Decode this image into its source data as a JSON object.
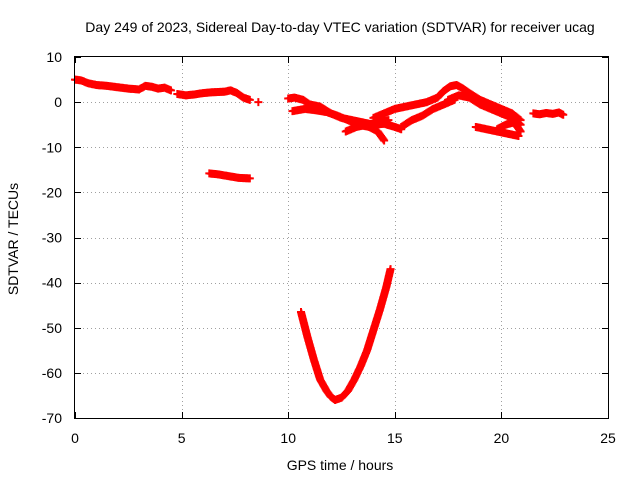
{
  "chart_data": {
    "type": "scatter",
    "title": "Day 249 of 2023, Sidereal Day-to-day VTEC variation (SDTVAR) for receiver ucag",
    "xlabel": "GPS time / hours",
    "ylabel": "SDTVAR / TECUs",
    "xlim": [
      0,
      25
    ],
    "ylim": [
      -70,
      10
    ],
    "xticks": [
      0,
      5,
      10,
      15,
      20,
      25
    ],
    "yticks": [
      10,
      0,
      -10,
      -20,
      -30,
      -40,
      -50,
      -60,
      -70
    ],
    "grid": true,
    "marker": "plus",
    "color": "#ff0000",
    "series": [
      {
        "name": "SDTVAR",
        "segments": [
          {
            "x": [
              0.0,
              0.3,
              0.6,
              1.0,
              1.5,
              2.0,
              2.5,
              3.0,
              3.3,
              3.6,
              3.9,
              4.2,
              4.5
            ],
            "y": [
              5,
              4.8,
              4.2,
              3.8,
              3.6,
              3.3,
              3.0,
              2.8,
              3.6,
              3.4,
              3.0,
              3.2,
              2.6
            ]
          },
          {
            "x": [
              4.8,
              5.2,
              5.6,
              6.0,
              6.5,
              7.0,
              7.3,
              7.6,
              7.9,
              8.2
            ],
            "y": [
              1.8,
              1.5,
              1.7,
              2.0,
              2.2,
              2.3,
              2.6,
              2.0,
              1.0,
              0.5
            ]
          },
          {
            "x": [
              8.6
            ],
            "y": [
              0.0
            ]
          },
          {
            "x": [
              6.3,
              6.7,
              7.2,
              7.7,
              8.2
            ],
            "y": [
              -15.8,
              -16.0,
              -16.4,
              -16.8,
              -16.9
            ]
          },
          {
            "x": [
              10.0,
              10.3,
              10.7,
              11.0,
              11.5,
              12.0,
              12.5,
              13.0,
              13.5,
              14.0,
              14.5,
              15.0,
              15.3
            ],
            "y": [
              0.8,
              1.0,
              0.5,
              -0.5,
              -1.0,
              -2.5,
              -3.5,
              -4.0,
              -4.5,
              -5.0,
              -4.8,
              -5.5,
              -6.0
            ]
          },
          {
            "x": [
              10.2,
              10.8,
              11.3,
              11.8,
              12.3,
              12.8,
              13.3,
              13.8,
              14.2,
              14.5
            ],
            "y": [
              -2.0,
              -1.5,
              -1.8,
              -2.2,
              -3.0,
              -4.0,
              -5.0,
              -5.5,
              -6.5,
              -8.5
            ]
          },
          {
            "x": [
              12.7,
              13.2,
              13.7,
              14.2,
              14.7
            ],
            "y": [
              -6.5,
              -5.5,
              -5.0,
              -4.5,
              -4.0
            ]
          },
          {
            "x": [
              14.0,
              14.5,
              15.0,
              15.5,
              16.0,
              16.5,
              17.0,
              17.3,
              17.6,
              17.9,
              18.2,
              18.5,
              19.0,
              19.5,
              20.0,
              20.5,
              20.9
            ],
            "y": [
              -3.5,
              -2.5,
              -1.5,
              -1.0,
              -0.5,
              0.0,
              1.0,
              2.5,
              3.5,
              3.8,
              3.0,
              2.0,
              0.5,
              -0.5,
              -1.5,
              -2.5,
              -4.0
            ]
          },
          {
            "x": [
              15.3,
              15.8,
              16.3,
              16.8,
              17.3,
              17.8
            ],
            "y": [
              -5.5,
              -4.0,
              -3.0,
              -1.5,
              -0.5,
              0.5
            ]
          },
          {
            "x": [
              17.5,
              18.0,
              18.5,
              19.0,
              19.5,
              20.0,
              20.5,
              20.9
            ],
            "y": [
              0.5,
              1.5,
              1.0,
              -0.5,
              -1.5,
              -2.5,
              -3.5,
              -5.0
            ]
          },
          {
            "x": [
              18.8,
              19.3,
              19.8,
              20.3,
              20.8
            ],
            "y": [
              -5.5,
              -6.0,
              -6.5,
              -7.0,
              -7.5
            ]
          },
          {
            "x": [
              19.8,
              20.2,
              20.6,
              20.9
            ],
            "y": [
              -6.0,
              -5.0,
              -4.5,
              -6.5
            ]
          },
          {
            "x": [
              21.5,
              21.8,
              22.1,
              22.4,
              22.7,
              22.9
            ],
            "y": [
              -2.5,
              -2.7,
              -2.4,
              -2.6,
              -2.3,
              -2.8
            ]
          },
          {
            "x": [
              10.6,
              10.9,
              11.2,
              11.5,
              11.8,
              12.0,
              12.2,
              12.5,
              12.8,
              13.1,
              13.4,
              13.7,
              14.0,
              14.3,
              14.6,
              14.8
            ],
            "y": [
              -46.5,
              -52,
              -57,
              -61.5,
              -64.0,
              -65.3,
              -66.0,
              -65.5,
              -64.0,
              -61.5,
              -58.5,
              -55.0,
              -50.5,
              -46.0,
              -41.0,
              -37.0
            ]
          }
        ]
      }
    ]
  }
}
